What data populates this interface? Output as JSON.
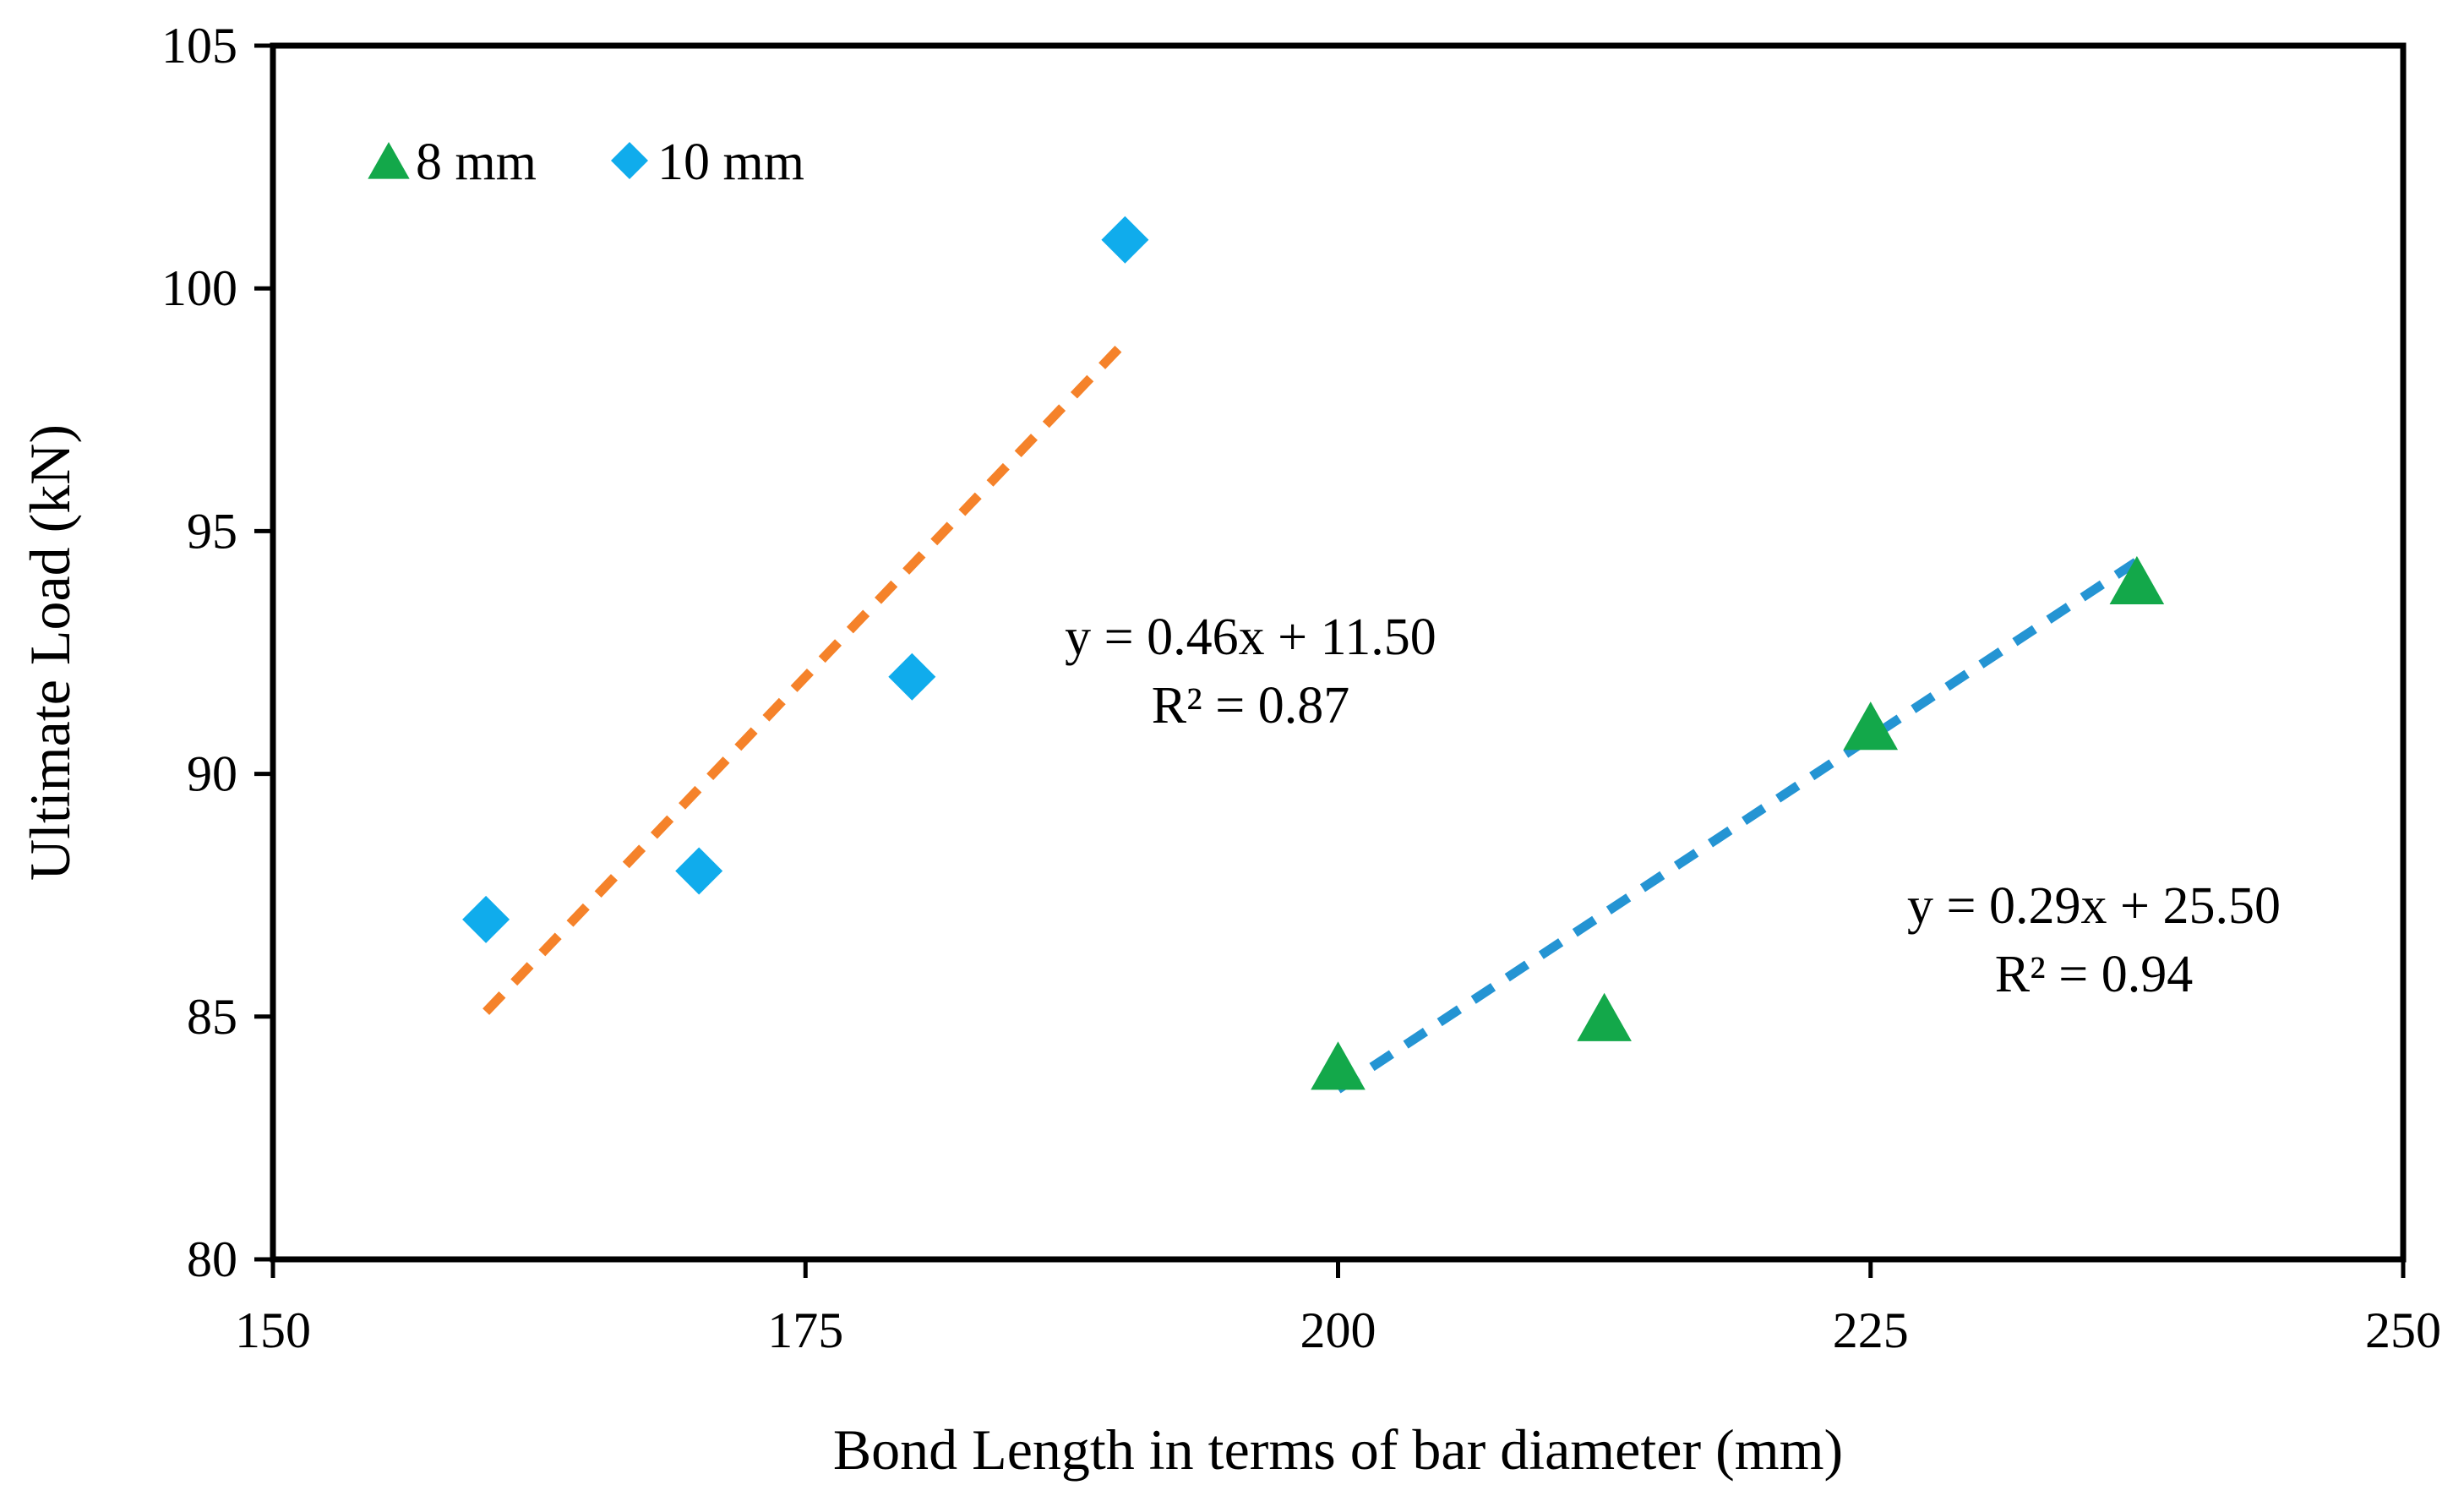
{
  "chart_data": {
    "type": "scatter",
    "title": "",
    "xlabel": "Bond Length in terms of bar diameter (mm)",
    "ylabel": "Ultimate Load (kN)",
    "xlim": [
      150,
      250
    ],
    "ylim": [
      80,
      105
    ],
    "xticks": [
      150,
      175,
      200,
      225,
      250
    ],
    "yticks": [
      80,
      85,
      90,
      95,
      100,
      105
    ],
    "grid": false,
    "legend_position": "top-left",
    "series": [
      {
        "name": "8 mm",
        "marker": "triangle",
        "color": "#13a84a",
        "points": [
          {
            "x": 200,
            "y": 84
          },
          {
            "x": 212.5,
            "y": 85
          },
          {
            "x": 225,
            "y": 91
          },
          {
            "x": 237.5,
            "y": 94
          }
        ],
        "trendline": {
          "style": "dashed",
          "color": "#2494d3",
          "slope": 0.29,
          "intercept": 25.5,
          "x_range": [
            200,
            237.5
          ],
          "equation": "y = 0.29x + 25.50",
          "r2": "R² = 0.94"
        }
      },
      {
        "name": "10 mm",
        "marker": "diamond",
        "color": "#10acec",
        "points": [
          {
            "x": 160,
            "y": 87
          },
          {
            "x": 170,
            "y": 88
          },
          {
            "x": 180,
            "y": 92
          },
          {
            "x": 190,
            "y": 101
          }
        ],
        "trendline": {
          "style": "dashed",
          "color": "#f5822a",
          "slope": 0.46,
          "intercept": 11.5,
          "x_range": [
            160,
            190
          ],
          "equation": "y = 0.46x + 11.50",
          "r2": "R² = 0.87"
        }
      }
    ]
  }
}
